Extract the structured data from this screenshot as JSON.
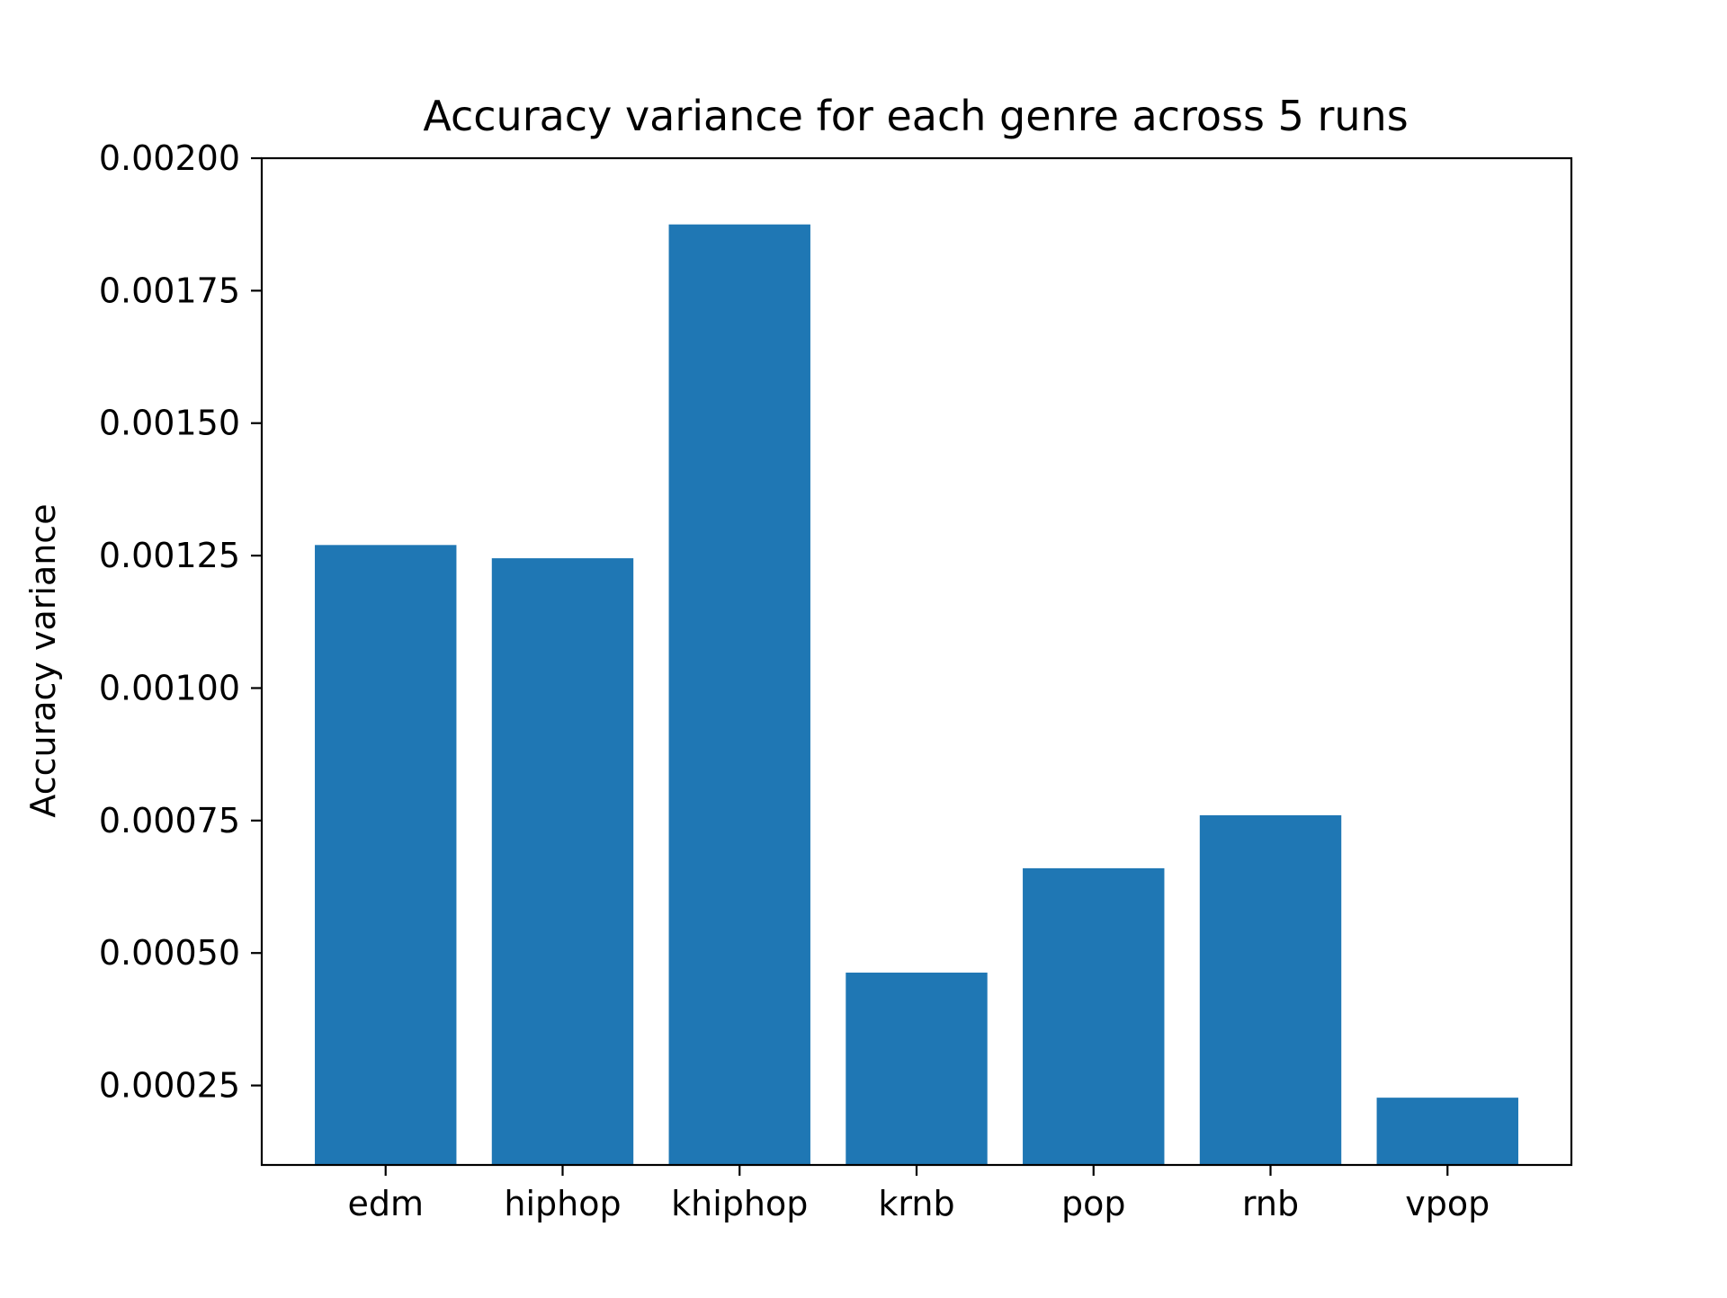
{
  "chart_data": {
    "type": "bar",
    "title": "Accuracy variance for each genre across 5 runs",
    "xlabel": "",
    "ylabel": "Accuracy variance",
    "categories": [
      "edm",
      "hiphop",
      "khiphop",
      "krnb",
      "pop",
      "rnb",
      "vpop"
    ],
    "values": [
      0.00127,
      0.001245,
      0.001875,
      0.000463,
      0.00066,
      0.00076,
      0.000227
    ],
    "ylim": [
      0.0001,
      0.002
    ],
    "yticks": [
      0.00025,
      0.0005,
      0.00075,
      0.001,
      0.00125,
      0.0015,
      0.00175,
      0.002
    ],
    "ytick_labels": [
      "0.00025",
      "0.00050",
      "0.00075",
      "0.00100",
      "0.00125",
      "0.00150",
      "0.00175",
      "0.00200"
    ],
    "bar_color": "#1f77b4",
    "grid": false,
    "legend": false
  }
}
